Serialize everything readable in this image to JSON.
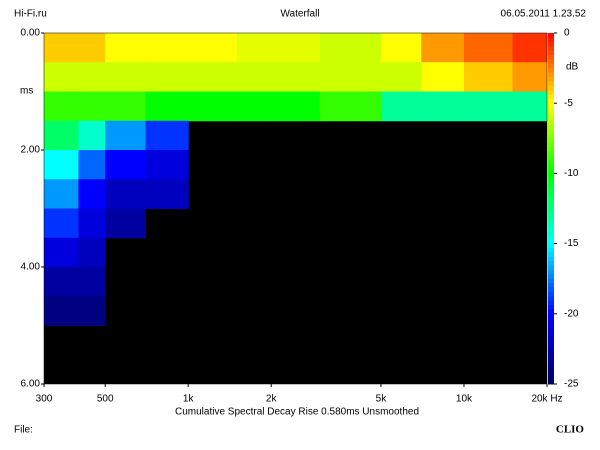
{
  "header": {
    "left": "Hi-Fi.ru",
    "center": "Waterfall",
    "right": "06.05.2011 1.23.52"
  },
  "chart_data": {
    "type": "heatmap",
    "subtitle": "Cumulative Spectral Decay   Rise 0.580ms   Unsmoothed",
    "ylabel": "ms",
    "colorbar_label": "dB",
    "xbins": [
      300,
      400,
      500,
      700,
      1000,
      1500,
      2000,
      3000,
      5000,
      7000,
      10000,
      15000,
      20000
    ],
    "ybins": [
      0,
      0.5,
      1,
      1.5,
      2,
      2.5,
      3,
      3.5,
      4,
      4.5,
      5,
      5.5,
      6
    ],
    "z": [
      [
        -4,
        -4,
        -5,
        -5,
        -5,
        -5.5,
        -5.5,
        -6,
        -5,
        -3,
        -2,
        -1
      ],
      [
        -6,
        -6,
        -6,
        -6,
        -6,
        -6,
        -6,
        -6,
        -6,
        -5,
        -4,
        -3
      ],
      [
        -9,
        -9,
        -9,
        -10,
        -10,
        -10,
        -10,
        -9,
        -13,
        -13,
        -13,
        -13
      ],
      [
        -12,
        -14,
        -17,
        -19,
        null,
        null,
        null,
        null,
        null,
        null,
        null,
        null
      ],
      [
        -15,
        -18,
        -20,
        -21,
        null,
        null,
        null,
        null,
        null,
        null,
        null,
        null
      ],
      [
        -17,
        -20,
        -22,
        -22,
        null,
        null,
        null,
        null,
        null,
        null,
        null,
        null
      ],
      [
        -19,
        -21,
        -23,
        null,
        null,
        null,
        null,
        null,
        null,
        null,
        null,
        null
      ],
      [
        -21,
        -22,
        null,
        null,
        null,
        null,
        null,
        null,
        null,
        null,
        null,
        null
      ],
      [
        -23,
        -23,
        null,
        null,
        null,
        null,
        null,
        null,
        null,
        null,
        null,
        null
      ],
      [
        -24,
        -24,
        null,
        null,
        null,
        null,
        null,
        null,
        null,
        null,
        null,
        null
      ],
      [
        null,
        null,
        null,
        null,
        null,
        null,
        null,
        null,
        null,
        null,
        null,
        null
      ],
      [
        null,
        null,
        null,
        null,
        null,
        null,
        null,
        null,
        null,
        null,
        null,
        null
      ]
    ],
    "xscale": "log",
    "xlim": [
      300,
      20000
    ],
    "xticks": [
      300,
      500,
      {
        "value": 1000,
        "label": "1k"
      },
      {
        "value": 2000,
        "label": "2k"
      },
      {
        "value": 5000,
        "label": "5k"
      },
      {
        "value": 10000,
        "label": "10k"
      },
      {
        "value": 20000,
        "label": "20k Hz"
      }
    ],
    "ylim": [
      0,
      6
    ],
    "yticks": [
      {
        "value": 0,
        "label": "0.00"
      },
      {
        "value": 2,
        "label": "2.00"
      },
      {
        "value": 4,
        "label": "4.00"
      },
      {
        "value": 6,
        "label": "6.00"
      }
    ],
    "zlim": [
      0,
      -25
    ],
    "zticks": [
      0,
      -5,
      -10,
      -15,
      -20,
      -25
    ],
    "colors": [
      "#ff0000",
      "#ffff00",
      "#00ff00",
      "#00ffff",
      "#0000ff",
      "#000060"
    ],
    "background": "#000000"
  },
  "footer": {
    "file": "File:",
    "brand": "CLIO"
  }
}
